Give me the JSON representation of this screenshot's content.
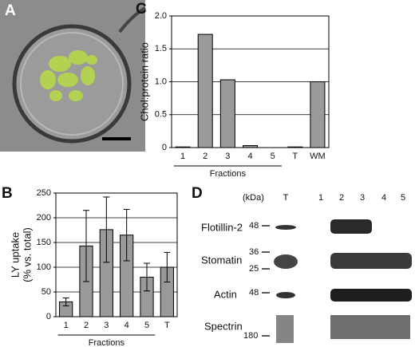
{
  "panel_labels": [
    "A",
    "B",
    "C",
    "D"
  ],
  "chart_data": [
    {
      "type": "bar",
      "ylabel": [
        "LY uptake",
        "(% vs. total)"
      ],
      "categories": [
        "1",
        "2",
        "3",
        "4",
        "5",
        "T"
      ],
      "values": [
        30,
        143,
        176,
        165,
        80,
        100
      ],
      "errors": [
        8,
        72,
        66,
        52,
        28,
        30
      ],
      "group_label": "Fractions",
      "color": "#9a9a9a",
      "ylim": [
        0,
        250
      ],
      "yticks": [
        0,
        50,
        100,
        150,
        200,
        250
      ],
      "grid": true
    },
    {
      "type": "bar",
      "ylabel": "Chol:protein ratio",
      "categories": [
        "1",
        "2",
        "3",
        "4",
        "5",
        "T",
        "WM"
      ],
      "values": [
        0.01,
        1.72,
        1.03,
        0.03,
        0,
        0.01,
        1.0
      ],
      "group_label": "Fractions",
      "color": "#9a9a9a",
      "ylim": [
        0,
        2
      ],
      "yticks": [
        0,
        0.5,
        {
          "value": 1,
          "label": "1.0"
        },
        1.5,
        {
          "value": 2,
          "label": "2.0"
        }
      ],
      "grid": true
    }
  ],
  "blot": {
    "kda_label": "(kDa)",
    "lanes": [
      "T",
      "1",
      "2",
      "3",
      "4",
      "5"
    ],
    "rows": [
      {
        "name": "Flotillin-2",
        "markers": [
          "48"
        ]
      },
      {
        "name": "Stomatin",
        "markers": [
          "36",
          "25"
        ]
      },
      {
        "name": "Actin",
        "markers": [
          "48"
        ]
      },
      {
        "name": "Spectrin",
        "markers": [
          "180"
        ]
      }
    ]
  }
}
